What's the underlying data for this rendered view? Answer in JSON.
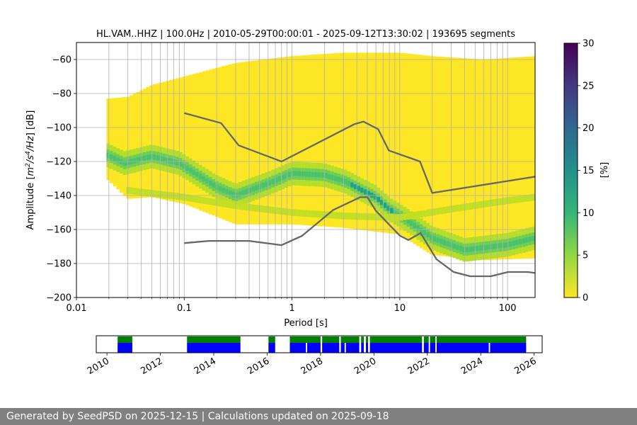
{
  "chart_data": [
    {
      "type": "heatmap",
      "title": "HL.VAM..HHZ | 100.0Hz | 2010-05-29T00:00:01 - 2025-09-12T13:30:02 | 193695 segments",
      "xlabel": "Period [s]",
      "ylabel": "Amplitude [m²/s⁴/Hz] [dB]",
      "ylabel_parts": {
        "base": "Amplitude [",
        "m": "m",
        "exp2": "2",
        "mid": "/s",
        "exp4": "4",
        "tail": "/Hz",
        "close": "] [dB]"
      },
      "x_scale": "log",
      "xlim": [
        0.01,
        180
      ],
      "ylim": [
        -200,
        -50
      ],
      "x_ticks": [
        {
          "value": 0.01,
          "label": "0.01"
        },
        {
          "value": 0.1,
          "label": "0.1"
        },
        {
          "value": 1,
          "label": "1"
        },
        {
          "value": 10,
          "label": "10"
        },
        {
          "value": 100,
          "label": "100"
        }
      ],
      "y_ticks": [
        {
          "value": -60,
          "label": "−60"
        },
        {
          "value": -80,
          "label": "−80"
        },
        {
          "value": -100,
          "label": "−100"
        },
        {
          "value": -120,
          "label": "−120"
        },
        {
          "value": -140,
          "label": "−140"
        },
        {
          "value": -160,
          "label": "−160"
        },
        {
          "value": -180,
          "label": "−180"
        },
        {
          "value": -200,
          "label": "−200"
        }
      ],
      "grid": true,
      "noise_models": [
        {
          "points": [
            [
              0.1,
              -91.5
            ],
            [
              0.22,
              -97.4
            ],
            [
              0.32,
              -110.5
            ],
            [
              0.8,
              -120
            ],
            [
              3.8,
              -98
            ],
            [
              4.6,
              -96.5
            ],
            [
              6.3,
              -101
            ],
            [
              7.9,
              -113.5
            ],
            [
              15.4,
              -120
            ],
            [
              20,
              -138.5
            ],
            [
              180,
              -128.9
            ]
          ]
        },
        {
          "points": [
            [
              0.1,
              -168
            ],
            [
              0.17,
              -166.7
            ],
            [
              0.4,
              -166.7
            ],
            [
              0.8,
              -169.2
            ],
            [
              1.24,
              -163.7
            ],
            [
              2.4,
              -148.6
            ],
            [
              4.3,
              -141
            ],
            [
              5,
              -141
            ],
            [
              6,
              -149
            ],
            [
              10,
              -163.6
            ],
            [
              12,
              -166.2
            ],
            [
              15.6,
              -162.1
            ],
            [
              21.9,
              -177.5
            ],
            [
              31.6,
              -185
            ],
            [
              45,
              -187.5
            ],
            [
              70,
              -187.5
            ],
            [
              101,
              -185
            ],
            [
              154,
              -185
            ],
            [
              180,
              -185.6
            ]
          ]
        }
      ],
      "psd_distribution": {
        "envelope": [
          {
            "period": 0.019,
            "upper": -83,
            "lower": -130
          },
          {
            "period": 0.03,
            "upper": -82,
            "lower": -142
          },
          {
            "period": 0.05,
            "upper": -75,
            "lower": -141
          },
          {
            "period": 0.1,
            "upper": -70,
            "lower": -145
          },
          {
            "period": 0.3,
            "upper": -62,
            "lower": -157
          },
          {
            "period": 1,
            "upper": -58,
            "lower": -157
          },
          {
            "period": 3,
            "upper": -56,
            "lower": -159
          },
          {
            "period": 10,
            "upper": -56,
            "lower": -163
          },
          {
            "period": 20,
            "upper": -58,
            "lower": -175
          },
          {
            "period": 60,
            "upper": -60,
            "lower": -178
          },
          {
            "period": 180,
            "upper": -58,
            "lower": -177
          }
        ],
        "mode_curve": [
          {
            "period": 0.019,
            "amplitude": -116
          },
          {
            "period": 0.028,
            "amplitude": -121
          },
          {
            "period": 0.05,
            "amplitude": -117
          },
          {
            "period": 0.09,
            "amplitude": -121
          },
          {
            "period": 0.2,
            "amplitude": -135
          },
          {
            "period": 0.3,
            "amplitude": -140
          },
          {
            "period": 0.6,
            "amplitude": -133
          },
          {
            "period": 1.0,
            "amplitude": -127
          },
          {
            "period": 2.0,
            "amplitude": -128
          },
          {
            "period": 3.2,
            "amplitude": -132
          },
          {
            "period": 4.5,
            "amplitude": -137
          },
          {
            "period": 6.0,
            "amplitude": -141
          },
          {
            "period": 8.0,
            "amplitude": -148
          },
          {
            "period": 12,
            "amplitude": -155
          },
          {
            "period": 20,
            "amplitude": -165
          },
          {
            "period": 40,
            "amplitude": -172
          },
          {
            "period": 100,
            "amplitude": -169
          },
          {
            "period": 180,
            "amplitude": -165
          }
        ],
        "secondary_curve": [
          {
            "period": 0.03,
            "amplitude": -137
          },
          {
            "period": 0.1,
            "amplitude": -141
          },
          {
            "period": 0.3,
            "amplitude": -146
          },
          {
            "period": 1,
            "amplitude": -150
          },
          {
            "period": 3,
            "amplitude": -152
          },
          {
            "period": 10,
            "amplitude": -153
          },
          {
            "period": 30,
            "amplitude": -148
          },
          {
            "period": 100,
            "amplitude": -143
          },
          {
            "period": 180,
            "amplitude": -141
          }
        ]
      },
      "colorbar": {
        "label": "[%]",
        "range": [
          0,
          30
        ],
        "ticks": [
          {
            "value": 0,
            "label": "0"
          },
          {
            "value": 5,
            "label": "5"
          },
          {
            "value": 10,
            "label": "10"
          },
          {
            "value": 15,
            "label": "15"
          },
          {
            "value": 20,
            "label": "20"
          },
          {
            "value": 25,
            "label": "25"
          },
          {
            "value": 30,
            "label": "30"
          }
        ],
        "colormap": [
          "#fde725",
          "#5ec962",
          "#21918c",
          "#3b528b",
          "#440154"
        ]
      }
    },
    {
      "type": "timeline",
      "xlim": [
        2009.6,
        2026.3
      ],
      "x_ticks": [
        {
          "value": 2010,
          "label": "2010"
        },
        {
          "value": 2012,
          "label": "2012"
        },
        {
          "value": 2014,
          "label": "2014"
        },
        {
          "value": 2016,
          "label": "2016"
        },
        {
          "value": 2018,
          "label": "2018"
        },
        {
          "value": 2020,
          "label": "2020"
        },
        {
          "value": 2022,
          "label": "2022"
        },
        {
          "value": 2024,
          "label": "2024"
        },
        {
          "value": 2026,
          "label": "2026"
        }
      ],
      "colors": {
        "upper": "#008000",
        "lower": "#0000ff"
      },
      "segments": [
        [
          2010.4,
          2010.95
        ],
        [
          2013.0,
          2015.0
        ],
        [
          2016.05,
          2016.3
        ],
        [
          2016.85,
          2018.0
        ],
        [
          2018.06,
          2018.7
        ],
        [
          2018.76,
          2019.45
        ],
        [
          2019.52,
          2019.62
        ],
        [
          2019.7,
          2019.78
        ],
        [
          2019.85,
          2021.8
        ],
        [
          2021.87,
          2022.05
        ],
        [
          2022.1,
          2022.3
        ],
        [
          2022.35,
          2025.7
        ]
      ],
      "lower_gaps": [
        [
          2017.45,
          2017.5
        ],
        [
          2018.9,
          2018.95
        ],
        [
          2024.3,
          2024.35
        ]
      ]
    }
  ],
  "footer": {
    "text": "Generated by SeedPSD on 2025-12-15 | Calculations updated on 2025-09-18"
  }
}
